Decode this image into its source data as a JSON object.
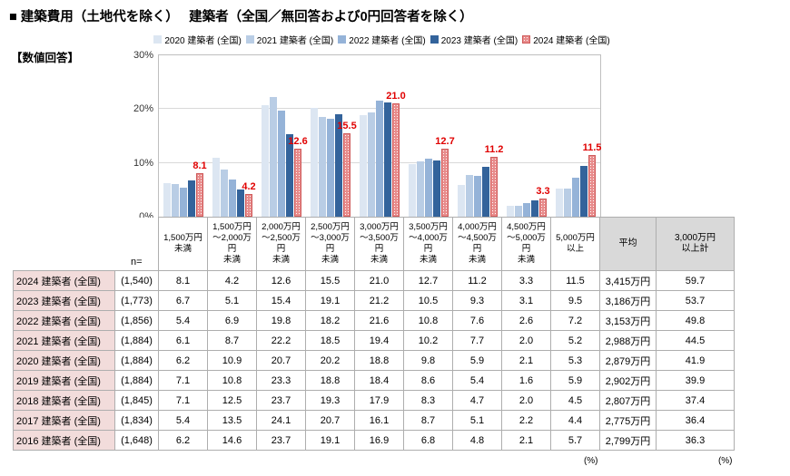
{
  "title": "■ 建築費用（土地代を除く）　 建築者（全国／無回答および0円回答者を除く）",
  "subtitle": "【数値回答】",
  "chart_data": {
    "type": "bar",
    "ylim": [
      0,
      30
    ],
    "grid": true,
    "legend_position": "top",
    "yticks": [
      {
        "label": "30%",
        "value": 30
      },
      {
        "label": "20%",
        "value": 20
      },
      {
        "label": "10%",
        "value": 10
      },
      {
        "label": "0%",
        "value": 0
      }
    ],
    "categories": [
      "1,500万円\n未満",
      "1,500万円\n～2,000万円\n未満",
      "2,000万円\n～2,500万円\n未満",
      "2,500万円\n～3,000万円\n未満",
      "3,000万円\n～3,500万円\n未満",
      "3,500万円\n～4,000万円\n未満",
      "4,000万円\n～4,500万円\n未満",
      "4,500万円\n～5,000万円\n未満",
      "5,000万円\n以上"
    ],
    "series": [
      {
        "name": "2020 建築者 (全国)",
        "color": "#dce6f2",
        "values": [
          6.2,
          10.9,
          20.7,
          20.2,
          18.8,
          9.8,
          5.9,
          2.1,
          5.3
        ]
      },
      {
        "name": "2021 建築者 (全国)",
        "color": "#b9cde5",
        "values": [
          6.1,
          8.7,
          22.2,
          18.5,
          19.4,
          10.2,
          7.7,
          2.0,
          5.2
        ]
      },
      {
        "name": "2022 建築者 (全国)",
        "color": "#95b3d8",
        "values": [
          5.4,
          6.9,
          19.8,
          18.2,
          21.6,
          10.8,
          7.6,
          2.6,
          7.2
        ]
      },
      {
        "name": "2023 建築者 (全国)",
        "color": "#33639b",
        "values": [
          6.7,
          5.1,
          15.4,
          19.1,
          21.2,
          10.5,
          9.3,
          3.1,
          9.5
        ]
      },
      {
        "name": "2024 建築者 (全国)",
        "color": "#e88c8c",
        "pattern": "dotted",
        "values": [
          8.1,
          4.2,
          12.6,
          15.5,
          21.0,
          12.7,
          11.2,
          3.3,
          11.5
        ]
      }
    ],
    "data_labels": {
      "series": "2024 建築者 (全国)",
      "color": "#e00000",
      "values": [
        8.1,
        4.2,
        12.6,
        15.5,
        21.0,
        12.7,
        11.2,
        3.3,
        11.5
      ]
    }
  },
  "table": {
    "n_header": "n=",
    "avg_header": "平均",
    "over_header": "3,000万円\n以上計",
    "unit_label": "(%)",
    "rows": [
      {
        "label": "2024 建築者 (全国)",
        "n": "(1,540)",
        "values": [
          8.1,
          4.2,
          12.6,
          15.5,
          21.0,
          12.7,
          11.2,
          3.3,
          11.5
        ],
        "avg": "3,415万円",
        "over_total": 59.7
      },
      {
        "label": "2023 建築者 (全国)",
        "n": "(1,773)",
        "values": [
          6.7,
          5.1,
          15.4,
          19.1,
          21.2,
          10.5,
          9.3,
          3.1,
          9.5
        ],
        "avg": "3,186万円",
        "over_total": 53.7
      },
      {
        "label": "2022 建築者 (全国)",
        "n": "(1,856)",
        "values": [
          5.4,
          6.9,
          19.8,
          18.2,
          21.6,
          10.8,
          7.6,
          2.6,
          7.2
        ],
        "avg": "3,153万円",
        "over_total": 49.8
      },
      {
        "label": "2021 建築者 (全国)",
        "n": "(1,884)",
        "values": [
          6.1,
          8.7,
          22.2,
          18.5,
          19.4,
          10.2,
          7.7,
          2.0,
          5.2
        ],
        "avg": "2,988万円",
        "over_total": 44.5
      },
      {
        "label": "2020 建築者 (全国)",
        "n": "(1,884)",
        "values": [
          6.2,
          10.9,
          20.7,
          20.2,
          18.8,
          9.8,
          5.9,
          2.1,
          5.3
        ],
        "avg": "2,879万円",
        "over_total": 41.9
      },
      {
        "label": "2019 建築者 (全国)",
        "n": "(1,884)",
        "values": [
          7.1,
          10.8,
          23.3,
          18.8,
          18.4,
          8.6,
          5.4,
          1.6,
          5.9
        ],
        "avg": "2,902万円",
        "over_total": 39.9
      },
      {
        "label": "2018 建築者 (全国)",
        "n": "(1,845)",
        "values": [
          7.1,
          12.5,
          23.7,
          19.3,
          17.9,
          8.3,
          4.7,
          2.0,
          4.5
        ],
        "avg": "2,807万円",
        "over_total": 37.4
      },
      {
        "label": "2017 建築者 (全国)",
        "n": "(1,834)",
        "values": [
          5.4,
          13.5,
          24.1,
          20.7,
          16.1,
          8.7,
          5.1,
          2.2,
          4.4
        ],
        "avg": "2,775万円",
        "over_total": 36.4
      },
      {
        "label": "2016 建築者 (全国)",
        "n": "(1,648)",
        "values": [
          6.2,
          14.6,
          23.7,
          19.1,
          16.9,
          6.8,
          4.8,
          2.1,
          5.7
        ],
        "avg": "2,799万円",
        "over_total": 36.3
      }
    ]
  }
}
